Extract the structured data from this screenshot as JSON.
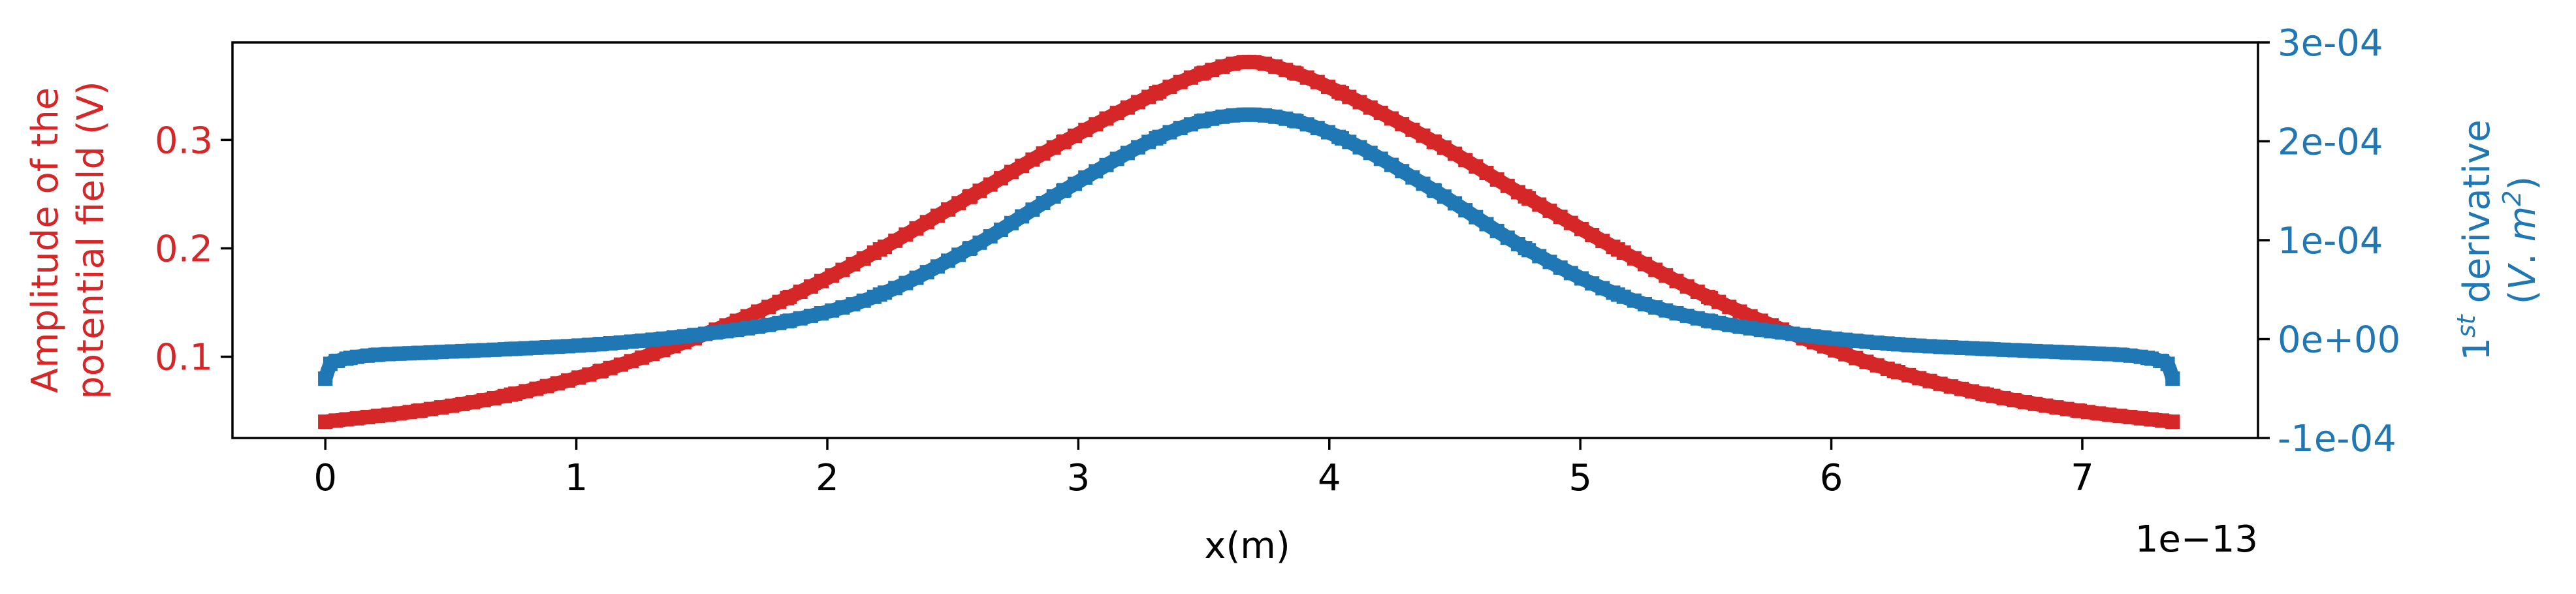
{
  "chart_data": {
    "type": "line",
    "xlabel": "x(m)",
    "x_offset_text": "1e−13",
    "x_tick_labels": [
      "0",
      "1",
      "2",
      "3",
      "4",
      "5",
      "6",
      "7"
    ],
    "x_ticks": [
      0,
      1,
      2,
      3,
      4,
      5,
      6,
      7
    ],
    "xlim": [
      -0.37,
      7.7
    ],
    "left_axis": {
      "label_line1": "Amplitude of the",
      "label_line2": "potential field (V)",
      "ylim": [
        0.025,
        0.39
      ],
      "ticks": [
        0.1,
        0.2,
        0.3
      ],
      "tick_labels": [
        "0.1",
        "0.2",
        "0.3"
      ],
      "color": "#d62728"
    },
    "right_axis": {
      "label_line1_main": "1",
      "label_line1_sup": "st",
      "label_line1_rest": " derivative",
      "label_line2_open": "(",
      "label_line2_v": "V",
      "label_line2_dot": ". ",
      "label_line2_m": "m",
      "label_line2_sup": "2",
      "label_line2_close": ")",
      "ylim": [
        -0.0001,
        0.0003
      ],
      "ticks": [
        -0.0001,
        0.0,
        0.0001,
        0.0002,
        0.0003
      ],
      "tick_labels": [
        "-1e-04",
        "0e+00",
        "1e-04",
        "2e-04",
        "3e-04"
      ],
      "color": "#1f77b4"
    },
    "grid": false,
    "series": [
      {
        "axis": "left",
        "color": "#d62728",
        "x": [
          0.0,
          0.37,
          0.74,
          1.1,
          1.47,
          1.84,
          2.21,
          2.57,
          2.94,
          3.31,
          3.5,
          3.68,
          3.86,
          4.05,
          4.42,
          4.78,
          5.15,
          5.52,
          5.89,
          6.25,
          6.62,
          6.99,
          7.36
        ],
        "values": [
          0.04,
          0.05,
          0.065,
          0.087,
          0.117,
          0.154,
          0.199,
          0.248,
          0.298,
          0.343,
          0.362,
          0.372,
          0.362,
          0.343,
          0.298,
          0.248,
          0.199,
          0.154,
          0.117,
          0.087,
          0.065,
          0.05,
          0.04
        ]
      },
      {
        "axis": "right",
        "color": "#1f77b4",
        "x": [
          0.0,
          0.02,
          0.05,
          0.1,
          0.2,
          0.37,
          0.74,
          1.1,
          1.47,
          1.84,
          2.21,
          2.57,
          2.94,
          3.31,
          3.5,
          3.68,
          3.86,
          4.05,
          4.42,
          4.78,
          5.15,
          5.52,
          5.89,
          6.25,
          6.62,
          6.99,
          7.16,
          7.26,
          7.31,
          7.34,
          7.36
        ],
        "values": [
          -4e-05,
          -2.5e-05,
          -2.2e-05,
          -1.9e-05,
          -1.6e-05,
          -1.4e-05,
          -1e-05,
          -5e-06,
          4e-06,
          1.8e-05,
          4.5e-05,
          9.2e-05,
          0.00015,
          0.000203,
          0.000221,
          0.000227,
          0.000221,
          0.000203,
          0.00015,
          9.2e-05,
          4.5e-05,
          1.8e-05,
          4e-06,
          -5e-06,
          -1e-05,
          -1.4e-05,
          -1.6e-05,
          -1.9e-05,
          -2.2e-05,
          -2.5e-05,
          -4e-05
        ]
      }
    ]
  }
}
